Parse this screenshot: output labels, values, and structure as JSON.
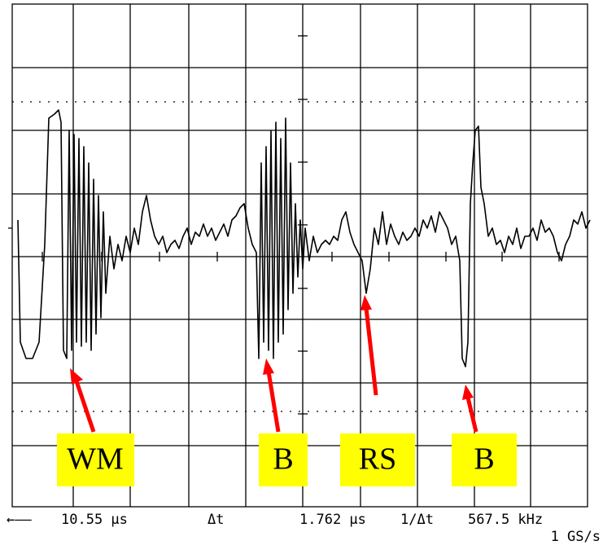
{
  "annotations": [
    "WM",
    "B",
    "RS",
    "B"
  ],
  "readout": {
    "arrow": "←——",
    "time": "10.55 µs",
    "delta_label": "Δt",
    "delta_value": "1.762 µs",
    "freq_label": "1/Δt",
    "freq_value": "567.5 kHz",
    "sample_rate": "1 GS/s"
  }
}
